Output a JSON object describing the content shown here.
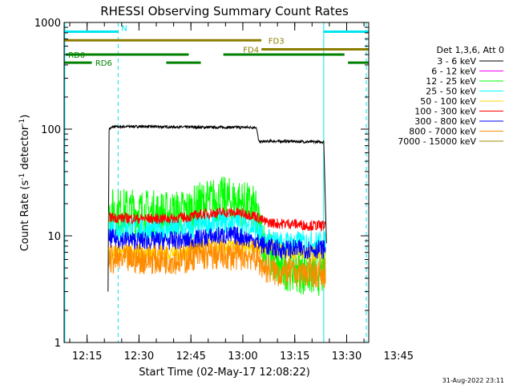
{
  "chart_data": {
    "type": "line",
    "title": "RHESSI Observing Summary Count Rates",
    "xlabel": "Start Time (02-May-17 12:08:22)",
    "ylabel_main": "Count Rate (s",
    "ylabel_sup1": "-1",
    "ylabel_mid": " detector",
    "ylabel_sup2": "-1",
    "ylabel_end": ")",
    "y_scale": "log",
    "ylim": [
      1,
      1000
    ],
    "xlim_minutes_after_start": [
      0,
      88
    ],
    "x_tick_labels": [
      "12:15",
      "12:30",
      "12:45",
      "13:00",
      "13:15",
      "13:30",
      "13:45"
    ],
    "x_tick_minutes_after_start": [
      6.63,
      21.63,
      36.63,
      51.63,
      66.63,
      81.63,
      96.63
    ],
    "y_tick_labels": [
      "1",
      "10",
      "100",
      "1000"
    ],
    "y_tick_values": [
      1,
      10,
      100,
      1000
    ],
    "legend_header": "Det 1,3,6, Att 0",
    "legend_placement": "right",
    "series": [
      {
        "name": "3 - 6 keV",
        "color": "#000000",
        "x": [
          12.7,
          13.0,
          14,
          20,
          30,
          40,
          50,
          55.5,
          56.3,
          60,
          65,
          70,
          75,
          75.4,
          75.8
        ],
        "values": [
          3,
          100,
          105,
          106,
          105,
          104,
          104,
          104,
          76,
          77,
          77,
          76,
          76,
          75,
          8.5
        ]
      },
      {
        "name": "6 - 12 keV",
        "color": "#ff00ff",
        "x": [],
        "values": []
      },
      {
        "name": "12 - 25 keV",
        "color": "#00ff00",
        "x": [
          12.9,
          20,
          30,
          36,
          40,
          45,
          50,
          55,
          58,
          62,
          66,
          70,
          75.6
        ],
        "values": [
          17,
          17,
          16,
          17,
          20,
          22,
          21,
          18,
          8,
          5,
          5,
          4.5,
          4.5
        ]
      },
      {
        "name": "25 - 50 keV",
        "color": "#00ffff",
        "x": [
          12.9,
          20,
          30,
          36,
          40,
          45,
          50,
          55,
          58,
          62,
          66,
          70,
          75.6
        ],
        "values": [
          12,
          11.5,
          11.5,
          11.5,
          12.5,
          13.5,
          13.5,
          12,
          9,
          8.5,
          8.5,
          8.5,
          8.5
        ]
      },
      {
        "name": "50 - 100 keV",
        "color": "#ffd700",
        "x": [
          12.9,
          36,
          36.5,
          55,
          75.6
        ],
        "values": [
          7,
          7,
          8,
          8,
          6.5
        ]
      },
      {
        "name": "100 - 300 keV",
        "color": "#ff0000",
        "x": [
          12.9,
          20,
          30,
          36,
          40,
          45,
          50,
          55,
          58,
          62,
          66,
          70,
          75.6
        ],
        "values": [
          15,
          14.5,
          14.5,
          15,
          16,
          16.5,
          16.5,
          15.5,
          13.5,
          13,
          13,
          12.5,
          12.5
        ]
      },
      {
        "name": "300 - 800 keV",
        "color": "#0000ff",
        "x": [
          12.9,
          20,
          30,
          36,
          40,
          45,
          50,
          55,
          58,
          62,
          66,
          70,
          75.6
        ],
        "values": [
          9.5,
          9,
          9,
          9,
          9.5,
          10,
          10,
          9,
          8,
          7.5,
          7.5,
          7.5,
          7.5
        ]
      },
      {
        "name": "800 - 7000 keV",
        "color": "#ff8c00",
        "x": [
          12.9,
          20,
          30,
          36,
          36.5,
          45,
          55,
          58,
          62,
          66,
          70,
          75.6
        ],
        "values": [
          6,
          6,
          6,
          6,
          6.5,
          6.5,
          6.5,
          5,
          4.5,
          4.5,
          4.5,
          4.5
        ]
      },
      {
        "name": "7000 - 15000 keV",
        "color": "#9c8a00",
        "x": [],
        "values": []
      }
    ],
    "state_bars": [
      {
        "label": "N",
        "color": "#00e5ee",
        "y": 820,
        "segments": [
          [
            0,
            15.6
          ],
          [
            75,
            88
          ]
        ]
      },
      {
        "label": "FD3",
        "color": "#8b7d00",
        "y": 680,
        "segments": [
          [
            0,
            57
          ]
        ]
      },
      {
        "label": "FD4",
        "color": "#8b7d00",
        "y": 560,
        "segments": [
          [
            57,
            88
          ]
        ]
      },
      {
        "label": "RD0",
        "color": "#008000",
        "y": 500,
        "segments": [
          [
            0.5,
            36
          ],
          [
            46,
            81
          ]
        ]
      },
      {
        "label": "RD6",
        "color": "#008000",
        "y": 420,
        "segments": [
          [
            0,
            8
          ],
          [
            29.5,
            39.5
          ],
          [
            82,
            88
          ]
        ]
      }
    ],
    "vertical_markers": [
      {
        "x": 0.2,
        "color": "#00e5ee",
        "style": "solid"
      },
      {
        "x": 15.6,
        "color": "#00e5ee",
        "style": "dashed"
      },
      {
        "x": 75.0,
        "color": "#00e5ee",
        "style": "solid"
      },
      {
        "x": 87.3,
        "color": "#00e5ee",
        "style": "dashed"
      }
    ]
  },
  "footer": {
    "timestamp": "31-Aug-2022 23:11"
  },
  "colors": {
    "background": "#ffffff",
    "axis": "#000000"
  }
}
